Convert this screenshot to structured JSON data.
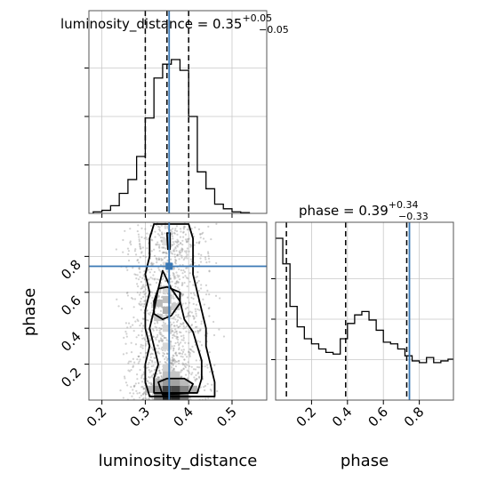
{
  "chart_data": [
    {
      "type": "histogram",
      "panel": "luminosity_distance-marginal",
      "param": "luminosity_distance",
      "title": "luminosity_distance = 0.35",
      "title_err_plus": "+0.05",
      "title_err_minus": "−0.05",
      "xlim": [
        0.17,
        0.58
      ],
      "bin_edges": [
        0.18,
        0.2,
        0.22,
        0.24,
        0.26,
        0.28,
        0.3,
        0.32,
        0.34,
        0.36,
        0.38,
        0.4,
        0.42,
        0.44,
        0.46,
        0.48,
        0.5,
        0.52,
        0.54
      ],
      "counts": [
        0.01,
        0.02,
        0.05,
        0.13,
        0.22,
        0.37,
        0.62,
        0.88,
        0.97,
        1.0,
        0.93,
        0.63,
        0.27,
        0.16,
        0.06,
        0.03,
        0.01,
        0.005
      ],
      "quantiles": [
        0.3,
        0.35,
        0.4
      ],
      "truth": 0.355,
      "xticks": [
        0.2,
        0.3,
        0.4,
        0.5
      ]
    },
    {
      "type": "histogram",
      "panel": "phase-marginal",
      "param": "phase",
      "title": "phase = 0.39",
      "title_err_plus": "+0.34",
      "title_err_minus": "−0.33",
      "xlim": [
        0.0,
        0.99
      ],
      "bin_edges": [
        0.0,
        0.04,
        0.08,
        0.12,
        0.16,
        0.2,
        0.24,
        0.28,
        0.32,
        0.36,
        0.4,
        0.44,
        0.48,
        0.52,
        0.56,
        0.6,
        0.64,
        0.68,
        0.72,
        0.76,
        0.8,
        0.84,
        0.88,
        0.92,
        0.96,
        0.99
      ],
      "counts": [
        0.95,
        0.8,
        0.55,
        0.43,
        0.36,
        0.33,
        0.3,
        0.28,
        0.27,
        0.36,
        0.45,
        0.5,
        0.52,
        0.47,
        0.41,
        0.34,
        0.33,
        0.3,
        0.26,
        0.23,
        0.22,
        0.25,
        0.22,
        0.23,
        0.24
      ],
      "quantiles": [
        0.06,
        0.39,
        0.73
      ],
      "truth": 0.745,
      "xticks": [
        0.2,
        0.4,
        0.6,
        0.8
      ],
      "xlabel": "phase"
    },
    {
      "type": "scatter",
      "panel": "joint-2d",
      "xlabel": "luminosity_distance",
      "ylabel": "phase",
      "xlim": [
        0.17,
        0.58
      ],
      "ylim": [
        0.0,
        0.99
      ],
      "xticks": [
        0.2,
        0.3,
        0.4,
        0.5
      ],
      "yticks": [
        0.2,
        0.4,
        0.6,
        0.8
      ],
      "truth": [
        0.355,
        0.745
      ],
      "contours": [
        [
          [
            0.31,
            0.02
          ],
          [
            0.3,
            0.1
          ],
          [
            0.3,
            0.2
          ],
          [
            0.31,
            0.3
          ],
          [
            0.3,
            0.4
          ],
          [
            0.3,
            0.5
          ],
          [
            0.31,
            0.6
          ],
          [
            0.3,
            0.7
          ],
          [
            0.31,
            0.8
          ],
          [
            0.31,
            0.9
          ],
          [
            0.32,
            0.98
          ],
          [
            0.4,
            0.98
          ],
          [
            0.41,
            0.9
          ],
          [
            0.41,
            0.8
          ],
          [
            0.41,
            0.7
          ],
          [
            0.42,
            0.6
          ],
          [
            0.43,
            0.5
          ],
          [
            0.44,
            0.4
          ],
          [
            0.44,
            0.3
          ],
          [
            0.45,
            0.2
          ],
          [
            0.46,
            0.1
          ],
          [
            0.46,
            0.02
          ]
        ],
        [
          [
            0.32,
            0.04
          ],
          [
            0.32,
            0.12
          ],
          [
            0.33,
            0.2
          ],
          [
            0.32,
            0.3
          ],
          [
            0.31,
            0.4
          ],
          [
            0.32,
            0.5
          ],
          [
            0.33,
            0.62
          ],
          [
            0.34,
            0.72
          ],
          [
            0.36,
            0.62
          ],
          [
            0.38,
            0.55
          ],
          [
            0.39,
            0.45
          ],
          [
            0.41,
            0.38
          ],
          [
            0.42,
            0.3
          ],
          [
            0.43,
            0.22
          ],
          [
            0.43,
            0.12
          ],
          [
            0.42,
            0.04
          ]
        ],
        [
          [
            0.34,
            0.03
          ],
          [
            0.33,
            0.1
          ],
          [
            0.35,
            0.12
          ],
          [
            0.39,
            0.12
          ],
          [
            0.41,
            0.09
          ],
          [
            0.4,
            0.04
          ]
        ],
        [
          [
            0.32,
            0.55
          ],
          [
            0.32,
            0.48
          ],
          [
            0.34,
            0.45
          ],
          [
            0.36,
            0.47
          ],
          [
            0.38,
            0.54
          ],
          [
            0.38,
            0.6
          ],
          [
            0.35,
            0.63
          ],
          [
            0.33,
            0.62
          ]
        ],
        [
          [
            0.35,
            0.93
          ],
          [
            0.352,
            0.84
          ],
          [
            0.357,
            0.84
          ],
          [
            0.357,
            0.93
          ]
        ]
      ],
      "density_cells": [
        {
          "x": 0.35,
          "y": 0.02,
          "v": 1.0
        },
        {
          "x": 0.37,
          "y": 0.02,
          "v": 0.95
        },
        {
          "x": 0.33,
          "y": 0.02,
          "v": 0.6
        },
        {
          "x": 0.39,
          "y": 0.02,
          "v": 0.6
        },
        {
          "x": 0.35,
          "y": 0.06,
          "v": 0.85
        },
        {
          "x": 0.37,
          "y": 0.06,
          "v": 0.8
        },
        {
          "x": 0.33,
          "y": 0.06,
          "v": 0.5
        },
        {
          "x": 0.39,
          "y": 0.06,
          "v": 0.55
        },
        {
          "x": 0.41,
          "y": 0.06,
          "v": 0.35
        },
        {
          "x": 0.31,
          "y": 0.06,
          "v": 0.3
        },
        {
          "x": 0.35,
          "y": 0.1,
          "v": 0.45
        },
        {
          "x": 0.37,
          "y": 0.1,
          "v": 0.4
        },
        {
          "x": 0.33,
          "y": 0.1,
          "v": 0.3
        },
        {
          "x": 0.39,
          "y": 0.1,
          "v": 0.3
        },
        {
          "x": 0.35,
          "y": 0.14,
          "v": 0.28
        },
        {
          "x": 0.37,
          "y": 0.14,
          "v": 0.25
        },
        {
          "x": 0.35,
          "y": 0.18,
          "v": 0.2
        },
        {
          "x": 0.35,
          "y": 0.3,
          "v": 0.18
        },
        {
          "x": 0.35,
          "y": 0.4,
          "v": 0.18
        },
        {
          "x": 0.33,
          "y": 0.46,
          "v": 0.25
        },
        {
          "x": 0.35,
          "y": 0.5,
          "v": 0.35
        },
        {
          "x": 0.33,
          "y": 0.54,
          "v": 0.3
        },
        {
          "x": 0.35,
          "y": 0.56,
          "v": 0.28
        },
        {
          "x": 0.37,
          "y": 0.52,
          "v": 0.22
        },
        {
          "x": 0.35,
          "y": 0.62,
          "v": 0.18
        },
        {
          "x": 0.35,
          "y": 0.75,
          "v": 0.15
        },
        {
          "x": 0.35,
          "y": 0.88,
          "v": 0.15
        }
      ]
    }
  ],
  "axis_label_x_left": "luminosity_distance",
  "axis_label_x_right": "phase",
  "axis_label_y": "phase"
}
